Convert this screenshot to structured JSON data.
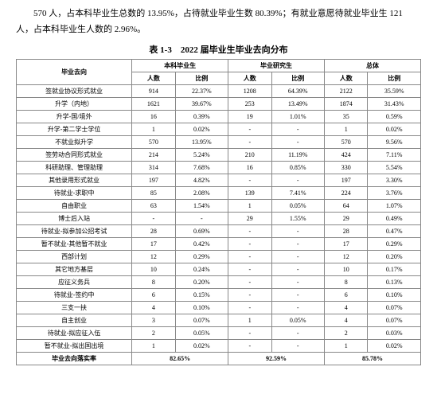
{
  "intro": "570 人，占本科毕业生总数的 13.95%，占待就业毕业生数 80.39%；有就业意愿待就业毕业生 121 人，占本科毕业生人数的 2.96%。",
  "table_title": "表 1-3　2022 届毕业生毕业去向分布",
  "headers": {
    "dest": "毕业去向",
    "group1": "本科毕业生",
    "group2": "毕业研究生",
    "group3": "总体",
    "count": "人数",
    "pct": "比例"
  },
  "rows": [
    {
      "label": "签就业协议形式就业",
      "a": "914",
      "ap": "22.37%",
      "b": "1208",
      "bp": "64.39%",
      "c": "2122",
      "cp": "35.59%"
    },
    {
      "label": "升学（内地）",
      "a": "1621",
      "ap": "39.67%",
      "b": "253",
      "bp": "13.49%",
      "c": "1874",
      "cp": "31.43%"
    },
    {
      "label": "升学-国/境外",
      "a": "16",
      "ap": "0.39%",
      "b": "19",
      "bp": "1.01%",
      "c": "35",
      "cp": "0.59%"
    },
    {
      "label": "升学-第二学士学位",
      "a": "1",
      "ap": "0.02%",
      "b": "-",
      "bp": "-",
      "c": "1",
      "cp": "0.02%"
    },
    {
      "label": "不就业拟升学",
      "a": "570",
      "ap": "13.95%",
      "b": "-",
      "bp": "-",
      "c": "570",
      "cp": "9.56%"
    },
    {
      "label": "签劳动合同形式就业",
      "a": "214",
      "ap": "5.24%",
      "b": "210",
      "bp": "11.19%",
      "c": "424",
      "cp": "7.11%"
    },
    {
      "label": "科研助理、管理助理",
      "a": "314",
      "ap": "7.68%",
      "b": "16",
      "bp": "0.85%",
      "c": "330",
      "cp": "5.54%"
    },
    {
      "label": "其他录用形式就业",
      "a": "197",
      "ap": "4.82%",
      "b": "-",
      "bp": "-",
      "c": "197",
      "cp": "3.30%"
    },
    {
      "label": "待就业-求职中",
      "a": "85",
      "ap": "2.08%",
      "b": "139",
      "bp": "7.41%",
      "c": "224",
      "cp": "3.76%"
    },
    {
      "label": "自由职业",
      "a": "63",
      "ap": "1.54%",
      "b": "1",
      "bp": "0.05%",
      "c": "64",
      "cp": "1.07%"
    },
    {
      "label": "博士后入站",
      "a": "-",
      "ap": "-",
      "b": "29",
      "bp": "1.55%",
      "c": "29",
      "cp": "0.49%"
    },
    {
      "label": "待就业-拟参加公招考试",
      "a": "28",
      "ap": "0.69%",
      "b": "-",
      "bp": "-",
      "c": "28",
      "cp": "0.47%"
    },
    {
      "label": "暂不就业-其他暂不就业",
      "a": "17",
      "ap": "0.42%",
      "b": "-",
      "bp": "-",
      "c": "17",
      "cp": "0.29%"
    },
    {
      "label": "西部计划",
      "a": "12",
      "ap": "0.29%",
      "b": "-",
      "bp": "-",
      "c": "12",
      "cp": "0.20%"
    },
    {
      "label": "其它地方基层",
      "a": "10",
      "ap": "0.24%",
      "b": "-",
      "bp": "-",
      "c": "10",
      "cp": "0.17%"
    },
    {
      "label": "应征义务兵",
      "a": "8",
      "ap": "0.20%",
      "b": "-",
      "bp": "-",
      "c": "8",
      "cp": "0.13%"
    },
    {
      "label": "待就业-签约中",
      "a": "6",
      "ap": "0.15%",
      "b": "-",
      "bp": "-",
      "c": "6",
      "cp": "0.10%"
    },
    {
      "label": "三支一扶",
      "a": "4",
      "ap": "0.10%",
      "b": "-",
      "bp": "-",
      "c": "4",
      "cp": "0.07%"
    },
    {
      "label": "自主创业",
      "a": "3",
      "ap": "0.07%",
      "b": "1",
      "bp": "0.05%",
      "c": "4",
      "cp": "0.07%"
    },
    {
      "label": "待就业-拟应征入伍",
      "a": "2",
      "ap": "0.05%",
      "b": "-",
      "bp": "-",
      "c": "2",
      "cp": "0.03%"
    },
    {
      "label": "暂不就业-拟出国出境",
      "a": "1",
      "ap": "0.02%",
      "b": "-",
      "bp": "-",
      "c": "1",
      "cp": "0.02%"
    }
  ],
  "footer": {
    "label": "毕业去向落实率",
    "ap": "82.65%",
    "bp": "92.59%",
    "cp": "85.78%"
  }
}
